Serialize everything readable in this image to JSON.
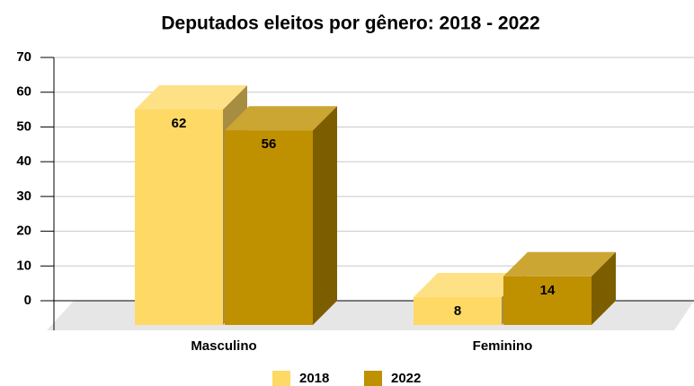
{
  "chart_data": {
    "type": "bar3d",
    "title": "Deputados eleitos por gênero: 2018 - 2022",
    "categories": [
      "Masculino",
      "Feminino"
    ],
    "series": [
      {
        "name": "2018",
        "color": "#ffd966",
        "values": [
          62,
          8
        ]
      },
      {
        "name": "2022",
        "color": "#bf9000",
        "values": [
          56,
          14
        ]
      }
    ],
    "ylim": [
      0,
      70
    ],
    "yticks": [
      0,
      10,
      20,
      30,
      40,
      50,
      60,
      70
    ],
    "grid": true,
    "legend": "bottom"
  }
}
